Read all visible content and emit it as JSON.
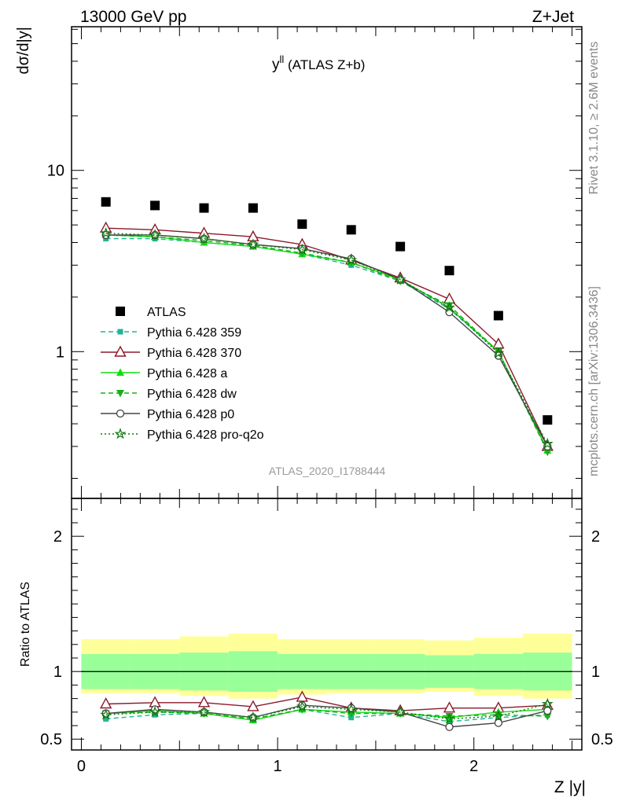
{
  "header": {
    "left_title": "13000 GeV pp",
    "right_title": "Z+Jet"
  },
  "side_labels": {
    "rivet": "Rivet 3.1.10, ≥ 2.6M events",
    "mcplots": "mcplots.cern.ch [arXiv:1306.3436]"
  },
  "chart_data": [
    {
      "type": "scatter",
      "title_main": "y",
      "title_sup": "ll",
      "title_rest": " (ATLAS Z+b)",
      "ylabel": "dσ/d|y|",
      "xlabel": "",
      "y_scale": "log",
      "ylim": [
        0.155,
        62
      ],
      "xlim": [
        -0.05,
        2.55
      ],
      "yticks": [
        {
          "v": 1,
          "label": "1"
        },
        {
          "v": 10,
          "label": "10"
        }
      ],
      "analysis_tag": "ATLAS_2020_I1788444",
      "x": [
        0.125,
        0.375,
        0.625,
        0.875,
        1.125,
        1.375,
        1.625,
        1.875,
        2.125,
        2.375
      ],
      "x_edges": [
        0,
        0.25,
        0.5,
        0.75,
        1.0,
        1.25,
        1.5,
        1.75,
        2.0,
        2.25,
        2.5
      ],
      "legend_position": "left-center",
      "series": [
        {
          "name": "ATLAS",
          "color": "#000000",
          "marker": "square",
          "dash": "",
          "line": false,
          "values": [
            6.7,
            6.4,
            6.2,
            6.2,
            5.05,
            4.7,
            3.8,
            2.8,
            1.58,
            0.42
          ]
        },
        {
          "name": "Pythia 6.428 359",
          "color": "#1fb596",
          "marker": "smallsquare",
          "dash": "6,4",
          "line": true,
          "values": [
            4.2,
            4.2,
            4.0,
            3.8,
            3.45,
            3.0,
            2.45,
            1.72,
            1.0,
            0.285
          ]
        },
        {
          "name": "Pythia 6.428 370",
          "color": "#8b1a2b",
          "marker": "opentriangle",
          "dash": "",
          "line": true,
          "values": [
            4.8,
            4.7,
            4.5,
            4.3,
            3.9,
            3.2,
            2.55,
            1.95,
            1.1,
            0.3
          ]
        },
        {
          "name": "Pythia 6.428 a",
          "color": "#11dd11",
          "marker": "triangle",
          "dash": "",
          "line": true,
          "values": [
            4.4,
            4.3,
            4.0,
            3.8,
            3.45,
            3.1,
            2.5,
            1.75,
            1.0,
            0.285
          ]
        },
        {
          "name": "Pythia 6.428 dw",
          "color": "#16b016",
          "marker": "triangledown",
          "dash": "6,4",
          "line": true,
          "values": [
            4.4,
            4.3,
            4.1,
            3.85,
            3.5,
            3.1,
            2.45,
            1.8,
            1.0,
            0.28
          ]
        },
        {
          "name": "Pythia 6.428 p0",
          "color": "#444444",
          "marker": "opencircle",
          "dash": "",
          "line": true,
          "values": [
            4.4,
            4.4,
            4.2,
            3.9,
            3.7,
            3.25,
            2.5,
            1.65,
            0.95,
            0.3
          ]
        },
        {
          "name": "Pythia 6.428 pro-q2o",
          "color": "#0b7a0b",
          "marker": "star",
          "dash": "2,3",
          "line": true,
          "values": [
            4.5,
            4.4,
            4.2,
            3.9,
            3.65,
            3.2,
            2.5,
            1.75,
            0.98,
            0.31
          ]
        }
      ]
    },
    {
      "type": "scatter",
      "ylabel": "Ratio to ATLAS",
      "xlabel": "Z |y|",
      "ylim": [
        0.42,
        2.28
      ],
      "xlim": [
        -0.05,
        2.55
      ],
      "yticks": [
        {
          "v": 0.5,
          "label": "0.5"
        },
        {
          "v": 1,
          "label": "1"
        },
        {
          "v": 2,
          "label": "2"
        }
      ],
      "xticks": [
        {
          "v": 0,
          "label": "0"
        },
        {
          "v": 1,
          "label": "1"
        },
        {
          "v": 2,
          "label": "2"
        }
      ],
      "band_green": [
        [
          0.87,
          1.13
        ],
        [
          0.87,
          1.13
        ],
        [
          0.86,
          1.14
        ],
        [
          0.85,
          1.15
        ],
        [
          0.87,
          1.13
        ],
        [
          0.87,
          1.13
        ],
        [
          0.87,
          1.13
        ],
        [
          0.88,
          1.12
        ],
        [
          0.87,
          1.13
        ],
        [
          0.86,
          1.14
        ]
      ],
      "band_yellow": [
        [
          0.84,
          1.24
        ],
        [
          0.84,
          1.24
        ],
        [
          0.82,
          1.26
        ],
        [
          0.8,
          1.28
        ],
        [
          0.83,
          1.24
        ],
        [
          0.84,
          1.24
        ],
        [
          0.84,
          1.24
        ],
        [
          0.85,
          1.23
        ],
        [
          0.82,
          1.25
        ],
        [
          0.8,
          1.28
        ]
      ],
      "series": [
        {
          "name": "Pythia 6.428 359",
          "values": [
            0.65,
            0.68,
            0.69,
            0.65,
            0.72,
            0.66,
            0.69,
            0.63,
            0.66,
            0.68
          ]
        },
        {
          "name": "Pythia 6.428 370",
          "values": [
            0.76,
            0.77,
            0.77,
            0.74,
            0.81,
            0.73,
            0.71,
            0.73,
            0.73,
            0.75
          ]
        },
        {
          "name": "Pythia 6.428 a",
          "values": [
            0.69,
            0.71,
            0.69,
            0.64,
            0.72,
            0.7,
            0.69,
            0.66,
            0.7,
            0.72
          ]
        },
        {
          "name": "Pythia 6.428 dw",
          "values": [
            0.69,
            0.7,
            0.69,
            0.65,
            0.72,
            0.69,
            0.69,
            0.67,
            0.68,
            0.67
          ]
        },
        {
          "name": "Pythia 6.428 p0",
          "values": [
            0.69,
            0.72,
            0.7,
            0.66,
            0.75,
            0.73,
            0.7,
            0.59,
            0.62,
            0.71
          ]
        },
        {
          "name": "Pythia 6.428 pro-q2o",
          "values": [
            0.68,
            0.7,
            0.7,
            0.66,
            0.74,
            0.72,
            0.7,
            0.65,
            0.67,
            0.76
          ]
        }
      ]
    }
  ]
}
